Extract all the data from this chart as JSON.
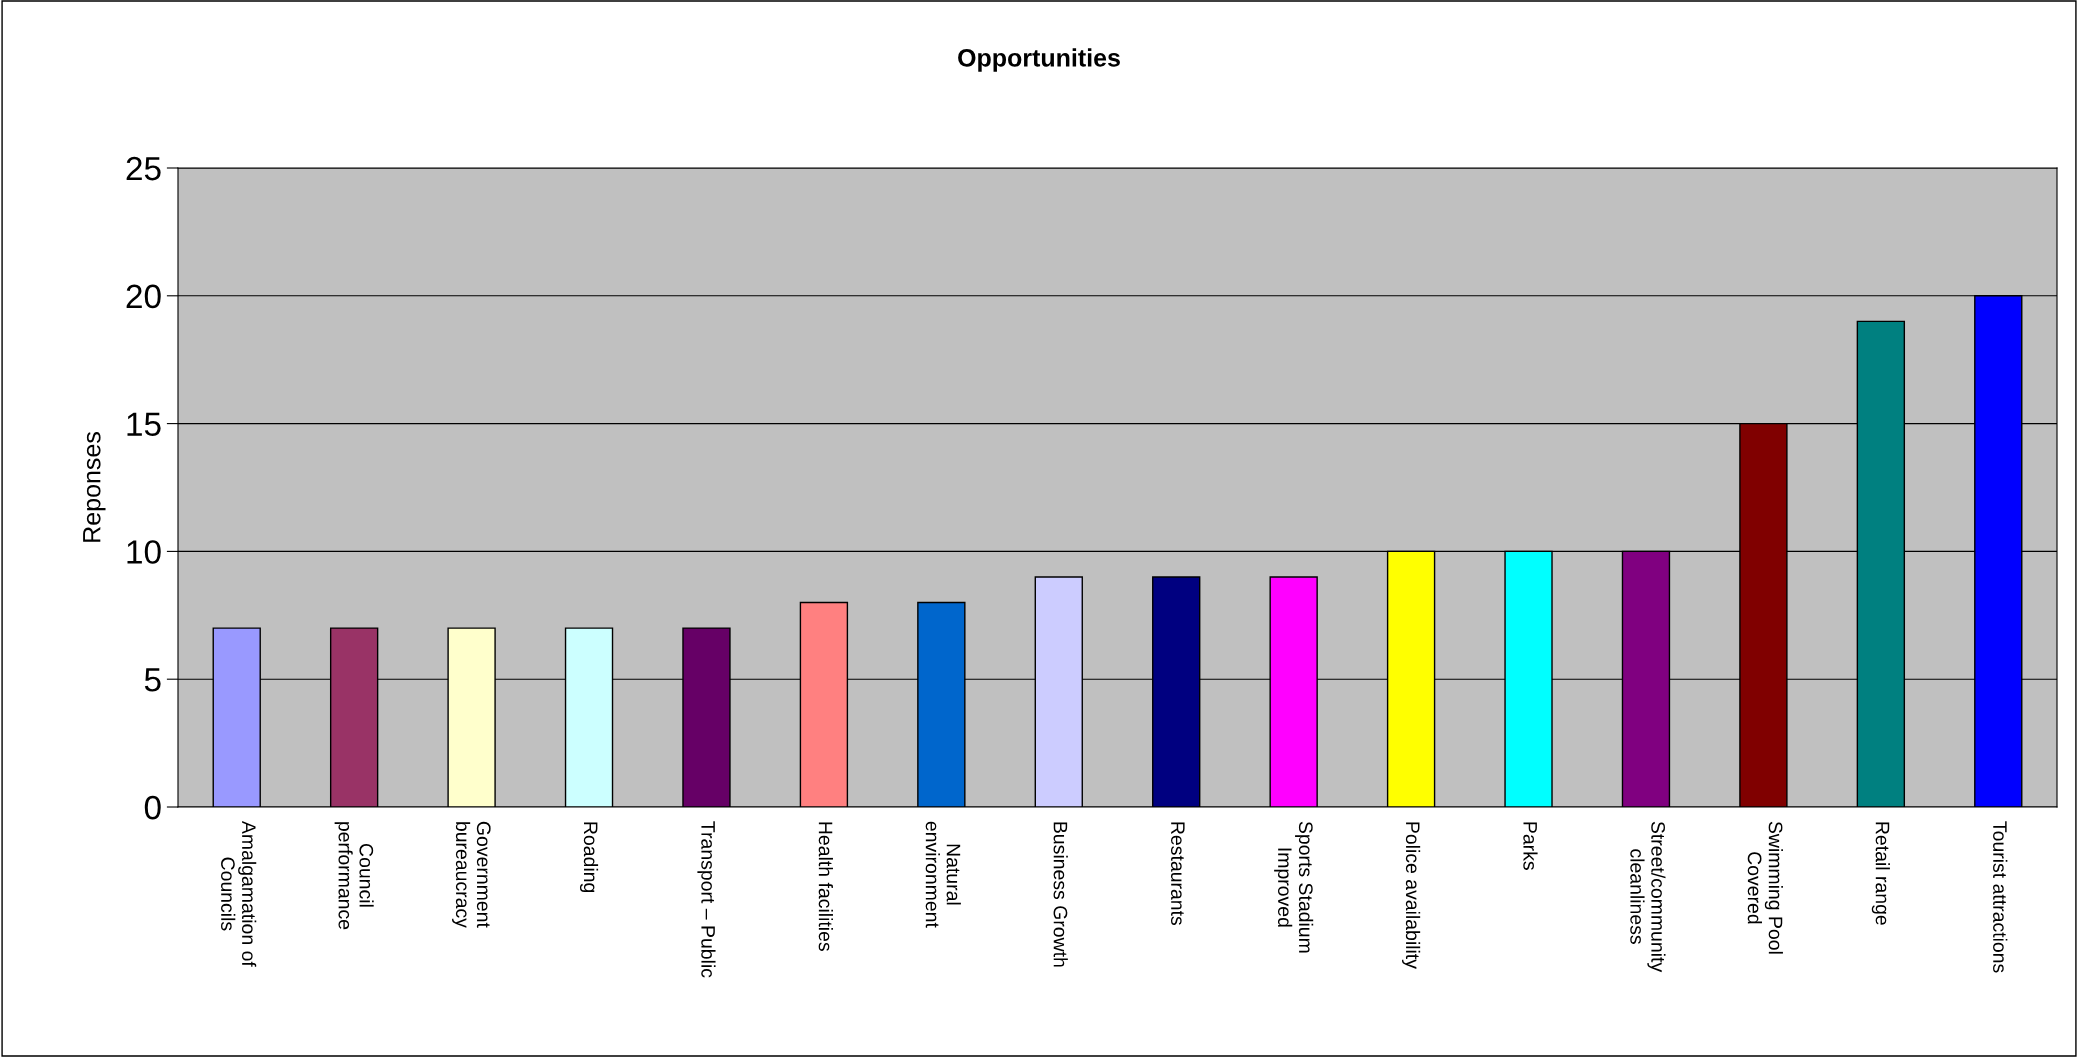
{
  "chart_data": {
    "type": "bar",
    "title": "Opportunities",
    "ylabel": "Reponses",
    "categories": [
      "Amalgamation of\nCouncils",
      "Council\nperformance",
      "Government\nbureaucracy",
      "Roading",
      "Transport – Public",
      "Health facilities",
      "Natural\nenvironment",
      "Business Growth",
      "Restaurants",
      "Sports Stadium\nImproved",
      "Police availability",
      "Parks",
      "Street/community\ncleanliness",
      "Swimming Pool\nCovered",
      "Retail range",
      "Tourist attractions"
    ],
    "values": [
      7,
      7,
      7,
      7,
      7,
      8,
      8,
      9,
      9,
      9,
      10,
      10,
      10,
      15,
      19,
      20
    ],
    "colors": [
      "#9999ff",
      "#993366",
      "#ffffcc",
      "#ccffff",
      "#660066",
      "#ff8080",
      "#0066cc",
      "#ccccff",
      "#000080",
      "#ff00ff",
      "#ffff00",
      "#00ffff",
      "#800080",
      "#800000",
      "#008080",
      "#0000ff"
    ],
    "ylim": [
      0,
      25
    ],
    "yticks": [
      0,
      5,
      10,
      15,
      20,
      25
    ],
    "grid": "y",
    "legend": false
  }
}
